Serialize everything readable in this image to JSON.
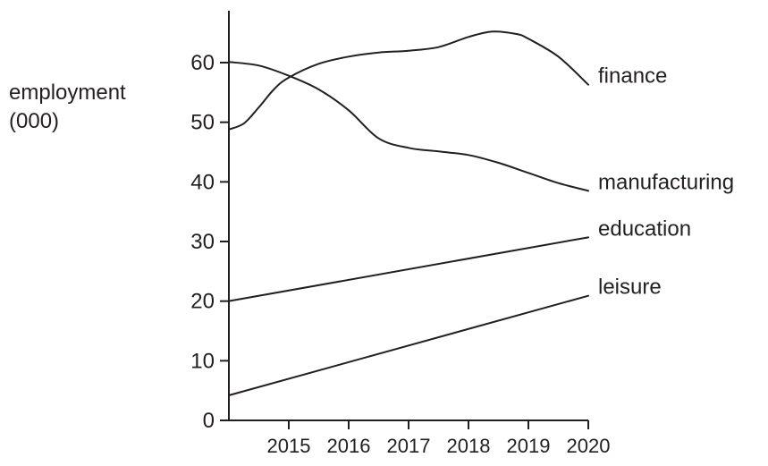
{
  "chart_data": {
    "type": "line",
    "title": "",
    "xlabel": "",
    "ylabel": [
      "employment",
      "(000)"
    ],
    "xlim": [
      2014,
      2020
    ],
    "ylim": [
      0,
      60
    ],
    "grid": false,
    "legend": "inline-end-labels",
    "x_ticks": [
      "2015",
      "2016",
      "2017",
      "2018",
      "2019",
      "2020"
    ],
    "y_ticks": [
      "0",
      "10",
      "20",
      "30",
      "40",
      "50",
      "60"
    ],
    "series": [
      {
        "name": "finance",
        "x": [
          2014,
          2014.25,
          2014.5,
          2014.75,
          2015,
          2015.5,
          2016,
          2016.5,
          2017,
          2017.5,
          2018,
          2018.4,
          2018.8,
          2019,
          2019.5,
          2020
        ],
        "y": [
          48.8,
          49.8,
          52.5,
          55.5,
          57.5,
          59.8,
          61.0,
          61.7,
          62.0,
          62.6,
          64.3,
          65.2,
          64.8,
          64.0,
          61.0,
          56.3
        ]
      },
      {
        "name": "manufacturing",
        "x": [
          2014,
          2014.5,
          2015,
          2015.5,
          2016,
          2016.5,
          2017,
          2017.5,
          2018,
          2018.5,
          2019,
          2019.5,
          2020
        ],
        "y": [
          60.1,
          59.5,
          57.8,
          55.5,
          52.0,
          47.3,
          45.7,
          45.1,
          44.5,
          43.2,
          41.5,
          39.8,
          38.5
        ]
      },
      {
        "name": "education",
        "x": [
          2014,
          2020
        ],
        "y": [
          20.0,
          30.7
        ]
      },
      {
        "name": "leisure",
        "x": [
          2014,
          2020
        ],
        "y": [
          4.2,
          20.9
        ]
      }
    ]
  }
}
